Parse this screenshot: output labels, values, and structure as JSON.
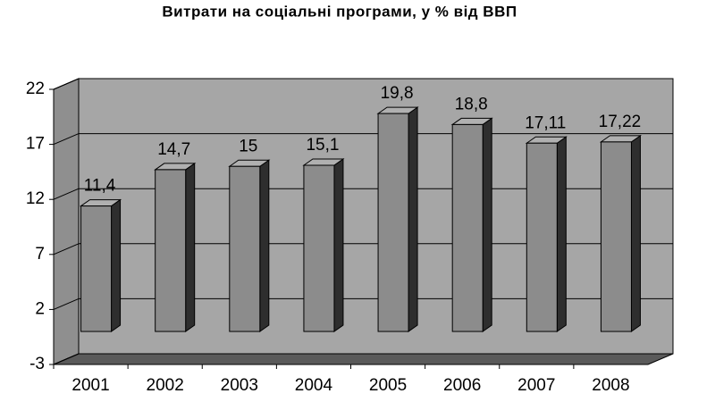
{
  "chart_data": {
    "type": "bar3d",
    "title": "Витрати на соціальні програми, у % від ВВП",
    "categories": [
      "2001",
      "2002",
      "2003",
      "2004",
      "2005",
      "2006",
      "2007",
      "2008"
    ],
    "values": [
      11.4,
      14.7,
      15,
      15.1,
      19.8,
      18.8,
      17.11,
      17.22
    ],
    "value_labels": [
      "11,4",
      "14,7",
      "15",
      "15,1",
      "19,8",
      "18,8",
      "17,11",
      "17,22"
    ],
    "color": "#8c8c8c",
    "ylim": [
      -3,
      22
    ],
    "yticks": [
      -3,
      2,
      7,
      12,
      17,
      22
    ],
    "grid": true
  }
}
